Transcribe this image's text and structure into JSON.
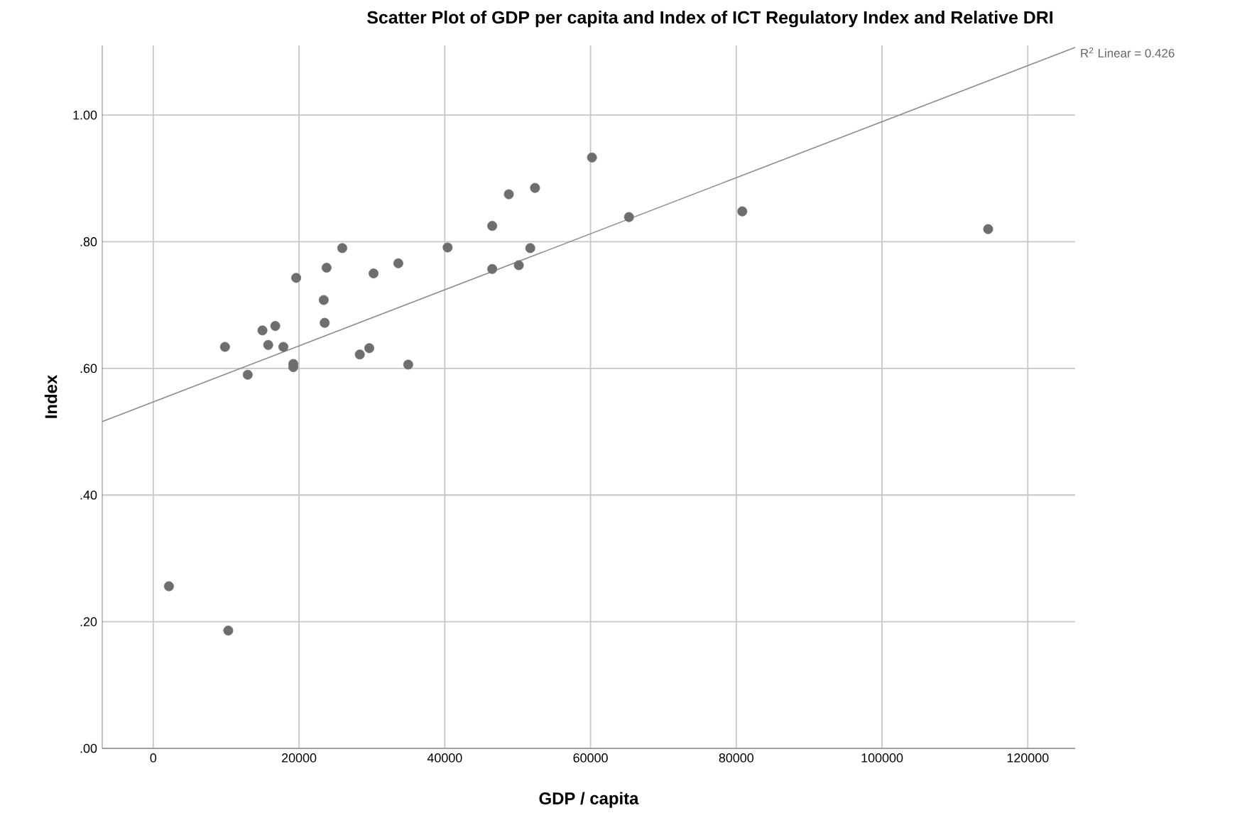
{
  "chart_data": {
    "type": "scatter",
    "title": "Scatter Plot of GDP per capita and Index of ICT Regulatory Index and Relative DRI",
    "xlabel": "GDP / capita",
    "ylabel": "Index",
    "annotations": [
      "R$^{2}$ Linear = 0.426"
    ],
    "xlim": [
      -7000,
      126500
    ],
    "ylim": [
      0,
      1.11
    ],
    "xticks": [
      0,
      20000,
      40000,
      60000,
      80000,
      100000,
      120000
    ],
    "yticks": [
      {
        "value": 0,
        "label": ".00"
      },
      {
        "value": 0.2,
        "label": ".20"
      },
      {
        "value": 0.4,
        "label": ".40"
      },
      {
        "value": 0.6,
        "label": ".60"
      },
      {
        "value": 0.8,
        "label": ".80"
      },
      {
        "value": 1.0,
        "label": "1.00"
      }
    ],
    "grid": true,
    "marker": "circle",
    "series": [
      {
        "color": "#6e6e6e",
        "x": [
          2150,
          9840,
          10290,
          12960,
          14980,
          15770,
          16740,
          17850,
          19220,
          19220,
          19610,
          23390,
          23520,
          23780,
          25930,
          28340,
          29640,
          30230,
          33620,
          34980,
          40390,
          46510,
          46510,
          48790,
          50160,
          51730,
          52380,
          60200,
          65280,
          80820,
          114560
        ],
        "values": [
          0.256,
          0.634,
          0.186,
          0.59,
          0.66,
          0.637,
          0.667,
          0.634,
          0.607,
          0.602,
          0.743,
          0.708,
          0.672,
          0.759,
          0.79,
          0.622,
          0.632,
          0.75,
          0.766,
          0.606,
          0.791,
          0.825,
          0.757,
          0.875,
          0.763,
          0.79,
          0.885,
          0.933,
          0.839,
          0.848,
          0.82
        ]
      },
      {
        "type": "line",
        "marker": "none",
        "color": "#8c8c8c",
        "x": [
          -7000,
          126500
        ],
        "values": [
          0.516,
          1.107
        ]
      }
    ]
  }
}
